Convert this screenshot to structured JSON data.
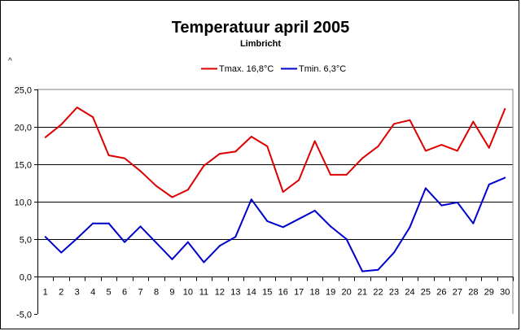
{
  "chart_data": {
    "type": "line",
    "title": "Temperatuur april 2005",
    "subtitle": "Limbricht",
    "ylabel_mark": "^",
    "xlabel": "",
    "ylabel": "",
    "ylim": [
      -5,
      25
    ],
    "yticks": [
      -5,
      0,
      5,
      10,
      15,
      20,
      25
    ],
    "ytick_labels": [
      "-5,0",
      "0,0",
      "5,0",
      "10,0",
      "15,0",
      "20,0",
      "25,0"
    ],
    "grid": true,
    "legend_position": "top",
    "categories": [
      "1",
      "2",
      "3",
      "4",
      "5",
      "6",
      "7",
      "8",
      "9",
      "10",
      "11",
      "12",
      "13",
      "14",
      "15",
      "16",
      "17",
      "18",
      "19",
      "20",
      "21",
      "22",
      "23",
      "24",
      "25",
      "26",
      "27",
      "28",
      "29",
      "30"
    ],
    "series": [
      {
        "name": "Tmax. 16,8°C",
        "color": "#dd0000",
        "values": [
          18.6,
          20.3,
          22.6,
          21.3,
          16.2,
          15.8,
          14.1,
          12.1,
          10.6,
          11.6,
          14.8,
          16.4,
          16.7,
          18.7,
          17.4,
          11.3,
          12.9,
          18.1,
          13.6,
          13.6,
          15.8,
          17.4,
          20.4,
          20.9,
          16.8,
          17.6,
          16.8,
          20.7,
          17.2,
          22.4
        ]
      },
      {
        "name": "Tmin. 6,3°C",
        "color": "#0000cc",
        "values": [
          5.3,
          3.2,
          5.1,
          7.1,
          7.1,
          4.6,
          6.7,
          4.5,
          2.3,
          4.6,
          1.9,
          4.1,
          5.3,
          10.3,
          7.4,
          6.6,
          7.7,
          8.8,
          6.7,
          5.0,
          0.7,
          0.9,
          3.2,
          6.6,
          11.8,
          9.5,
          9.9,
          7.1,
          12.3,
          13.2
        ]
      }
    ]
  }
}
